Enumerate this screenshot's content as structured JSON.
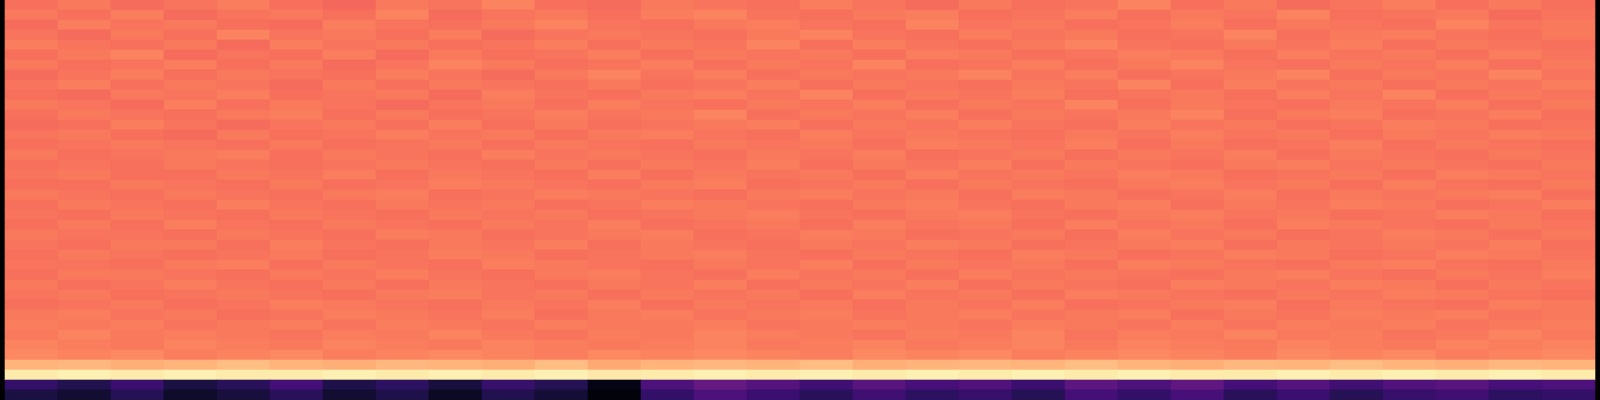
{
  "chart_data": {
    "type": "heatmap",
    "color": "magma",
    "tick_labels": false,
    "zlim": [
      0,
      1
    ],
    "cells": [
      [
        0.7,
        0.72,
        0.69,
        0.71,
        0.73,
        0.7,
        0.68,
        0.72,
        0.71,
        0.74,
        0.7,
        0.69,
        0.72,
        0.71,
        0.7,
        0.73,
        0.71,
        0.69,
        0.72,
        0.7,
        0.71,
        0.74,
        0.7,
        0.72,
        0.69,
        0.71,
        0.73,
        0.7,
        0.72,
        0.7
      ],
      [
        0.72,
        0.7,
        0.73,
        0.69,
        0.71,
        0.72,
        0.7,
        0.74,
        0.69,
        0.71,
        0.72,
        0.7,
        0.73,
        0.74,
        0.71,
        0.7,
        0.72,
        0.73,
        0.7,
        0.71,
        0.73,
        0.7,
        0.72,
        0.71,
        0.74,
        0.7,
        0.71,
        0.72,
        0.69,
        0.71
      ],
      [
        0.69,
        0.73,
        0.71,
        0.72,
        0.7,
        0.69,
        0.73,
        0.71,
        0.7,
        0.72,
        0.74,
        0.71,
        0.7,
        0.72,
        0.73,
        0.71,
        0.7,
        0.74,
        0.71,
        0.72,
        0.7,
        0.71,
        0.73,
        0.7,
        0.72,
        0.71,
        0.7,
        0.74,
        0.71,
        0.72
      ],
      [
        0.71,
        0.69,
        0.72,
        0.7,
        0.74,
        0.71,
        0.72,
        0.7,
        0.73,
        0.69,
        0.71,
        0.72,
        0.71,
        0.7,
        0.72,
        0.74,
        0.71,
        0.7,
        0.73,
        0.71,
        0.72,
        0.7,
        0.71,
        0.74,
        0.7,
        0.72,
        0.73,
        0.71,
        0.7,
        0.72
      ],
      [
        0.73,
        0.71,
        0.7,
        0.72,
        0.69,
        0.73,
        0.71,
        0.72,
        0.7,
        0.71,
        0.73,
        0.7,
        0.72,
        0.71,
        0.74,
        0.7,
        0.73,
        0.71,
        0.7,
        0.72,
        0.74,
        0.71,
        0.7,
        0.72,
        0.71,
        0.73,
        0.7,
        0.72,
        0.71,
        0.7
      ],
      [
        0.7,
        0.72,
        0.74,
        0.69,
        0.71,
        0.7,
        0.73,
        0.69,
        0.72,
        0.7,
        0.71,
        0.73,
        0.7,
        0.72,
        0.71,
        0.72,
        0.7,
        0.73,
        0.72,
        0.7,
        0.71,
        0.73,
        0.72,
        0.7,
        0.73,
        0.71,
        0.72,
        0.7,
        0.73,
        0.71
      ],
      [
        0.72,
        0.7,
        0.71,
        0.73,
        0.7,
        0.72,
        0.69,
        0.71,
        0.74,
        0.72,
        0.7,
        0.71,
        0.73,
        0.7,
        0.72,
        0.71,
        0.74,
        0.7,
        0.71,
        0.73,
        0.7,
        0.72,
        0.74,
        0.71,
        0.7,
        0.72,
        0.71,
        0.73,
        0.7,
        0.72
      ],
      [
        0.69,
        0.71,
        0.73,
        0.7,
        0.72,
        0.71,
        0.7,
        0.73,
        0.71,
        0.69,
        0.72,
        0.74,
        0.71,
        0.73,
        0.7,
        0.72,
        0.71,
        0.72,
        0.74,
        0.71,
        0.73,
        0.7,
        0.71,
        0.72,
        0.74,
        0.7,
        0.72,
        0.71,
        0.74,
        0.71
      ],
      [
        0.71,
        0.73,
        0.7,
        0.72,
        0.71,
        0.69,
        0.72,
        0.7,
        0.72,
        0.71,
        0.7,
        0.72,
        0.7,
        0.71,
        0.73,
        0.7,
        0.72,
        0.71,
        0.7,
        0.72,
        0.71,
        0.74,
        0.7,
        0.73,
        0.71,
        0.72,
        0.7,
        0.72,
        0.71,
        0.73
      ],
      [
        0.7,
        0.69,
        0.72,
        0.71,
        0.73,
        0.7,
        0.71,
        0.72,
        0.69,
        0.73,
        0.71,
        0.7,
        0.72,
        0.73,
        0.71,
        0.74,
        0.7,
        0.72,
        0.71,
        0.73,
        0.7,
        0.71,
        0.72,
        0.7,
        0.73,
        0.71,
        0.74,
        0.7,
        0.72,
        0.71
      ],
      [
        0.72,
        0.71,
        0.69,
        0.73,
        0.7,
        0.72,
        0.71,
        0.69,
        0.71,
        0.72,
        0.7,
        0.73,
        0.71,
        0.7,
        0.72,
        0.71,
        0.73,
        0.7,
        0.72,
        0.71,
        0.74,
        0.7,
        0.72,
        0.71,
        0.7,
        0.72,
        0.71,
        0.73,
        0.7,
        0.72
      ],
      [
        0.7,
        0.72,
        0.71,
        0.7,
        0.72,
        0.73,
        0.7,
        0.72,
        0.7,
        0.71,
        0.73,
        0.71,
        0.72,
        0.74,
        0.7,
        0.72,
        0.71,
        0.73,
        0.7,
        0.72,
        0.71,
        0.72,
        0.74,
        0.7,
        0.72,
        0.73,
        0.7,
        0.71,
        0.73,
        0.7
      ],
      [
        0.69,
        0.7,
        0.73,
        0.71,
        0.69,
        0.71,
        0.72,
        0.7,
        0.73,
        0.7,
        0.72,
        0.7,
        0.71,
        0.72,
        0.73,
        0.7,
        0.72,
        0.71,
        0.73,
        0.71,
        0.7,
        0.73,
        0.71,
        0.72,
        0.7,
        0.71,
        0.73,
        0.72,
        0.7,
        0.71
      ],
      [
        0.71,
        0.72,
        0.7,
        0.69,
        0.72,
        0.7,
        0.71,
        0.73,
        0.71,
        0.72,
        0.7,
        0.72,
        0.73,
        0.71,
        0.7,
        0.73,
        0.71,
        0.72,
        0.71,
        0.7,
        0.72,
        0.71,
        0.73,
        0.71,
        0.72,
        0.7,
        0.72,
        0.71,
        0.73,
        0.72
      ],
      [
        0.7,
        0.71,
        0.72,
        0.71,
        0.7,
        0.72,
        0.7,
        0.71,
        0.72,
        0.7,
        0.72,
        0.71,
        0.7,
        0.72,
        0.71,
        0.72,
        0.7,
        0.73,
        0.72,
        0.71,
        0.73,
        0.7,
        0.72,
        0.7,
        0.71,
        0.73,
        0.7,
        0.72,
        0.71,
        0.7
      ],
      [
        0.72,
        0.7,
        0.71,
        0.72,
        0.73,
        0.7,
        0.72,
        0.71,
        0.7,
        0.73,
        0.71,
        0.72,
        0.71,
        0.7,
        0.72,
        0.71,
        0.73,
        0.7,
        0.71,
        0.72,
        0.7,
        0.72,
        0.71,
        0.73,
        0.7,
        0.72,
        0.71,
        0.7,
        0.72,
        0.71
      ],
      [
        0.7,
        0.71,
        0.7,
        0.72,
        0.71,
        0.7,
        0.71,
        0.72,
        0.71,
        0.7,
        0.72,
        0.7,
        0.72,
        0.71,
        0.73,
        0.7,
        0.72,
        0.71,
        0.73,
        0.7,
        0.72,
        0.71,
        0.7,
        0.72,
        0.73,
        0.71,
        0.72,
        0.71,
        0.7,
        0.72
      ],
      [
        0.71,
        0.72,
        0.7,
        0.7,
        0.72,
        0.71,
        0.73,
        0.7,
        0.72,
        0.71,
        0.7,
        0.73,
        0.7,
        0.72,
        0.71,
        0.72,
        0.7,
        0.73,
        0.71,
        0.72,
        0.71,
        0.73,
        0.72,
        0.7,
        0.71,
        0.72,
        0.7,
        0.73,
        0.72,
        0.71
      ],
      [
        0.7,
        0.7,
        0.72,
        0.71,
        0.7,
        0.72,
        0.7,
        0.71,
        0.73,
        0.72,
        0.71,
        0.7,
        0.72,
        0.73,
        0.7,
        0.71,
        0.72,
        0.7,
        0.72,
        0.71,
        0.7,
        0.72,
        0.73,
        0.71,
        0.72,
        0.7,
        0.73,
        0.71,
        0.7,
        0.72
      ],
      [
        0.72,
        0.71,
        0.7,
        0.72,
        0.71,
        0.7,
        0.72,
        0.73,
        0.7,
        0.71,
        0.73,
        0.72,
        0.71,
        0.7,
        0.72,
        0.73,
        0.71,
        0.72,
        0.7,
        0.73,
        0.72,
        0.7,
        0.71,
        0.73,
        0.7,
        0.72,
        0.71,
        0.72,
        0.73,
        0.7
      ],
      [
        0.7,
        0.72,
        0.71,
        0.7,
        0.73,
        0.71,
        0.7,
        0.72,
        0.71,
        0.72,
        0.7,
        0.71,
        0.73,
        0.72,
        0.71,
        0.7,
        0.72,
        0.73,
        0.71,
        0.7,
        0.72,
        0.73,
        0.7,
        0.72,
        0.71,
        0.73,
        0.72,
        0.7,
        0.71,
        0.73
      ],
      [
        0.71,
        0.7,
        0.72,
        0.71,
        0.7,
        0.72,
        0.71,
        0.7,
        0.72,
        0.71,
        0.72,
        0.7,
        0.71,
        0.72,
        0.73,
        0.71,
        0.7,
        0.72,
        0.73,
        0.71,
        0.7,
        0.72,
        0.73,
        0.71,
        0.72,
        0.7,
        0.71,
        0.73,
        0.72,
        0.7
      ],
      [
        0.7,
        0.72,
        0.7,
        0.73,
        0.71,
        0.7,
        0.72,
        0.71,
        0.7,
        0.72,
        0.71,
        0.73,
        0.7,
        0.71,
        0.72,
        0.7,
        0.73,
        0.71,
        0.72,
        0.7,
        0.73,
        0.71,
        0.72,
        0.7,
        0.73,
        0.72,
        0.71,
        0.7,
        0.72,
        0.71
      ],
      [
        0.72,
        0.71,
        0.71,
        0.7,
        0.72,
        0.71,
        0.7,
        0.73,
        0.72,
        0.7,
        0.71,
        0.72,
        0.73,
        0.7,
        0.71,
        0.73,
        0.72,
        0.7,
        0.71,
        0.72,
        0.7,
        0.73,
        0.71,
        0.72,
        0.7,
        0.71,
        0.73,
        0.72,
        0.7,
        0.72
      ],
      [
        0.71,
        0.7,
        0.72,
        0.72,
        0.7,
        0.73,
        0.71,
        0.7,
        0.72,
        0.71,
        0.73,
        0.7,
        0.72,
        0.71,
        0.7,
        0.72,
        0.71,
        0.73,
        0.72,
        0.7,
        0.71,
        0.72,
        0.73,
        0.7,
        0.72,
        0.71,
        0.72,
        0.71,
        0.73,
        0.7
      ],
      [
        0.7,
        0.72,
        0.71,
        0.7,
        0.71,
        0.72,
        0.7,
        0.71,
        0.73,
        0.72,
        0.7,
        0.71,
        0.72,
        0.73,
        0.71,
        0.7,
        0.72,
        0.71,
        0.7,
        0.73,
        0.72,
        0.7,
        0.71,
        0.73,
        0.72,
        0.7,
        0.71,
        0.73,
        0.72,
        0.71
      ],
      [
        0.71,
        0.71,
        0.7,
        0.72,
        0.73,
        0.7,
        0.72,
        0.71,
        0.7,
        0.73,
        0.72,
        0.71,
        0.7,
        0.72,
        0.71,
        0.73,
        0.7,
        0.72,
        0.71,
        0.72,
        0.7,
        0.73,
        0.72,
        0.71,
        0.7,
        0.72,
        0.73,
        0.71,
        0.7,
        0.72
      ],
      [
        0.7,
        0.72,
        0.72,
        0.71,
        0.7,
        0.72,
        0.71,
        0.73,
        0.71,
        0.7,
        0.72,
        0.73,
        0.71,
        0.7,
        0.73,
        0.71,
        0.72,
        0.7,
        0.73,
        0.71,
        0.72,
        0.71,
        0.7,
        0.72,
        0.73,
        0.71,
        0.7,
        0.72,
        0.71,
        0.73
      ],
      [
        0.72,
        0.7,
        0.71,
        0.73,
        0.71,
        0.7,
        0.72,
        0.7,
        0.72,
        0.71,
        0.7,
        0.72,
        0.71,
        0.73,
        0.7,
        0.72,
        0.71,
        0.73,
        0.7,
        0.72,
        0.71,
        0.7,
        0.73,
        0.72,
        0.71,
        0.73,
        0.72,
        0.7,
        0.72,
        0.71
      ],
      [
        0.71,
        0.72,
        0.7,
        0.71,
        0.72,
        0.71,
        0.7,
        0.72,
        0.73,
        0.71,
        0.72,
        0.7,
        0.72,
        0.71,
        0.72,
        0.7,
        0.73,
        0.71,
        0.72,
        0.7,
        0.73,
        0.72,
        0.71,
        0.7,
        0.72,
        0.71,
        0.73,
        0.72,
        0.71,
        0.7
      ],
      [
        0.7,
        0.71,
        0.72,
        0.7,
        0.71,
        0.73,
        0.72,
        0.71,
        0.7,
        0.72,
        0.71,
        0.73,
        0.7,
        0.72,
        0.71,
        0.72,
        0.7,
        0.72,
        0.71,
        0.73,
        0.7,
        0.71,
        0.72,
        0.73,
        0.7,
        0.72,
        0.71,
        0.7,
        0.73,
        0.72
      ],
      [
        0.72,
        0.73,
        0.71,
        0.72,
        0.7,
        0.71,
        0.73,
        0.72,
        0.71,
        0.73,
        0.7,
        0.72,
        0.73,
        0.71,
        0.72,
        0.73,
        0.71,
        0.72,
        0.73,
        0.71,
        0.72,
        0.73,
        0.7,
        0.72,
        0.71,
        0.73,
        0.72,
        0.73,
        0.71,
        0.72
      ],
      [
        0.73,
        0.72,
        0.73,
        0.71,
        0.72,
        0.73,
        0.71,
        0.73,
        0.72,
        0.71,
        0.73,
        0.72,
        0.72,
        0.73,
        0.71,
        0.72,
        0.73,
        0.72,
        0.71,
        0.73,
        0.72,
        0.71,
        0.73,
        0.71,
        0.73,
        0.72,
        0.73,
        0.71,
        0.72,
        0.73
      ],
      [
        0.72,
        0.74,
        0.72,
        0.73,
        0.72,
        0.71,
        0.73,
        0.72,
        0.74,
        0.72,
        0.71,
        0.73,
        0.72,
        0.74,
        0.73,
        0.72,
        0.71,
        0.73,
        0.72,
        0.74,
        0.71,
        0.73,
        0.72,
        0.74,
        0.72,
        0.73,
        0.71,
        0.72,
        0.74,
        0.72
      ],
      [
        0.74,
        0.73,
        0.72,
        0.74,
        0.73,
        0.72,
        0.74,
        0.73,
        0.72,
        0.74,
        0.73,
        0.72,
        0.73,
        0.74,
        0.72,
        0.73,
        0.74,
        0.72,
        0.73,
        0.74,
        0.72,
        0.74,
        0.73,
        0.72,
        0.74,
        0.73,
        0.72,
        0.74,
        0.73,
        0.74
      ],
      [
        0.75,
        0.74,
        0.75,
        0.73,
        0.74,
        0.75,
        0.73,
        0.74,
        0.75,
        0.74,
        0.73,
        0.75,
        0.74,
        0.75,
        0.74,
        0.73,
        0.75,
        0.74,
        0.75,
        0.73,
        0.74,
        0.75,
        0.74,
        0.73,
        0.75,
        0.74,
        0.75,
        0.73,
        0.74,
        0.75
      ],
      [
        0.84,
        0.85,
        0.83,
        0.84,
        0.86,
        0.84,
        0.83,
        0.85,
        0.84,
        0.83,
        0.86,
        0.82,
        0.84,
        0.85,
        0.84,
        0.86,
        0.83,
        0.84,
        0.85,
        0.84,
        0.86,
        0.84,
        0.83,
        0.85,
        0.84,
        0.86,
        0.84,
        0.83,
        0.85,
        0.84
      ],
      [
        0.96,
        0.97,
        0.96,
        0.97,
        0.96,
        0.96,
        0.97,
        0.96,
        0.97,
        0.96,
        0.97,
        0.95,
        0.96,
        0.97,
        0.96,
        0.97,
        0.96,
        0.97,
        0.96,
        0.97,
        0.96,
        0.97,
        0.96,
        0.96,
        0.97,
        0.96,
        0.97,
        0.96,
        0.97,
        0.96
      ],
      [
        0.18,
        0.14,
        0.2,
        0.12,
        0.16,
        0.22,
        0.13,
        0.17,
        0.11,
        0.19,
        0.15,
        0.04,
        0.24,
        0.3,
        0.26,
        0.21,
        0.27,
        0.23,
        0.25,
        0.2,
        0.28,
        0.24,
        0.29,
        0.22,
        0.26,
        0.21,
        0.25,
        0.27,
        0.23,
        0.24
      ],
      [
        0.12,
        0.09,
        0.15,
        0.08,
        0.11,
        0.16,
        0.09,
        0.13,
        0.07,
        0.14,
        0.1,
        0.02,
        0.18,
        0.24,
        0.2,
        0.16,
        0.21,
        0.17,
        0.19,
        0.15,
        0.22,
        0.18,
        0.23,
        0.16,
        0.2,
        0.15,
        0.19,
        0.21,
        0.17,
        0.18
      ]
    ]
  }
}
